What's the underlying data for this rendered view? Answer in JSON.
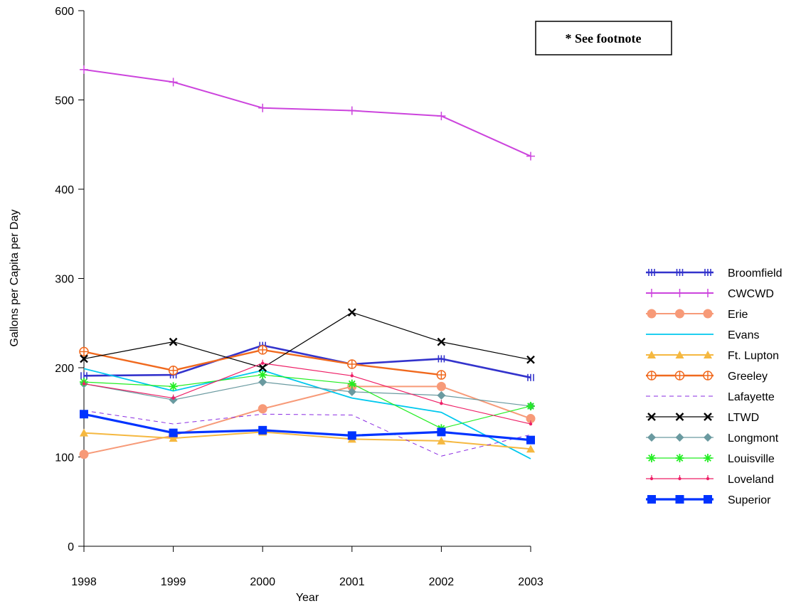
{
  "chart_data": {
    "type": "line",
    "xlabel": "Year",
    "ylabel": "Gallons per Capita per Day",
    "x": [
      1998,
      1999,
      2000,
      2001,
      2002,
      2003
    ],
    "x_tick_labels": [
      "1998",
      "1999",
      "2000",
      "2001",
      "2002",
      "2003"
    ],
    "ylim": [
      0,
      600
    ],
    "y_ticks": [
      0,
      100,
      200,
      300,
      400,
      500,
      600
    ],
    "y_tick_labels": [
      "0",
      "100",
      "200",
      "300",
      "400",
      "500",
      "600"
    ],
    "grid": false,
    "legend_position": "right",
    "annotation": "* See footnote",
    "series": [
      {
        "name": "Broomfield",
        "color": "#3333cc",
        "marker": "hash",
        "values": [
          191,
          192,
          225,
          204,
          210,
          189
        ]
      },
      {
        "name": "CWCWD",
        "color": "#cc44dd",
        "marker": "plus",
        "values": [
          534,
          520,
          491,
          488,
          482,
          437
        ]
      },
      {
        "name": "Erie",
        "color": "#f79a78",
        "marker": "circle",
        "values": [
          103,
          124,
          154,
          179,
          179,
          143
        ]
      },
      {
        "name": "Evans",
        "color": "#00c8ee",
        "marker": "none",
        "values": [
          199,
          174,
          197,
          166,
          150,
          98
        ]
      },
      {
        "name": "Ft. Lupton",
        "color": "#f5b840",
        "marker": "triangle",
        "values": [
          127,
          121,
          128,
          120,
          118,
          109
        ]
      },
      {
        "name": "Greeley",
        "color": "#f0691e",
        "marker": "circleplus",
        "values": [
          218,
          197,
          220,
          204,
          192,
          null
        ]
      },
      {
        "name": "Lafayette",
        "color": "#8a2be2",
        "marker": "dash",
        "values": [
          152,
          137,
          148,
          147,
          101,
          125
        ]
      },
      {
        "name": "LTWD",
        "color": "#000000",
        "marker": "x",
        "values": [
          210,
          229,
          200,
          262,
          229,
          209
        ]
      },
      {
        "name": "Longmont",
        "color": "#6a9aa0",
        "marker": "diamond",
        "values": [
          182,
          164,
          184,
          173,
          169,
          157
        ]
      },
      {
        "name": "Louisville",
        "color": "#22ee22",
        "marker": "star",
        "values": [
          184,
          179,
          192,
          182,
          132,
          157
        ]
      },
      {
        "name": "Loveland",
        "color": "#ee1f66",
        "marker": "dot",
        "values": [
          182,
          166,
          205,
          191,
          160,
          137
        ]
      },
      {
        "name": "Superior",
        "color": "#0033ff",
        "marker": "square",
        "values": [
          148,
          127,
          130,
          124,
          128,
          119
        ]
      }
    ]
  }
}
